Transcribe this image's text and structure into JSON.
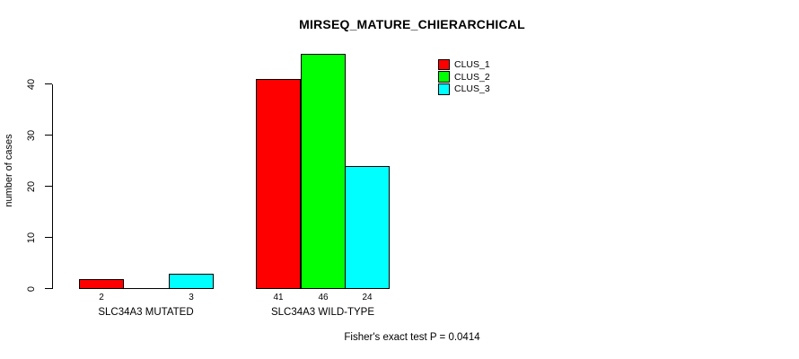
{
  "chart_data": {
    "type": "bar",
    "title": "MIRSEQ_MATURE_CHIERARCHICAL",
    "ylabel": "number of cases",
    "xlabel": "",
    "categories": [
      "SLC34A3 MUTATED",
      "SLC34A3 WILD-TYPE"
    ],
    "series": [
      {
        "name": "CLUS_1",
        "color": "#ff0000",
        "values": [
          2,
          41
        ]
      },
      {
        "name": "CLUS_2",
        "color": "#00ff00",
        "values": [
          0,
          46
        ]
      },
      {
        "name": "CLUS_3",
        "color": "#00ffff",
        "values": [
          3,
          24
        ]
      }
    ],
    "bar_value_labels": [
      [
        "2",
        "",
        "3"
      ],
      [
        "41",
        "46",
        "24"
      ]
    ],
    "y_ticks": [
      0,
      10,
      20,
      30,
      40
    ],
    "ylim": [
      0,
      46
    ],
    "grid": false,
    "legend_position": "top-right",
    "annotation": "Fisher's exact test P = 0.0414"
  }
}
